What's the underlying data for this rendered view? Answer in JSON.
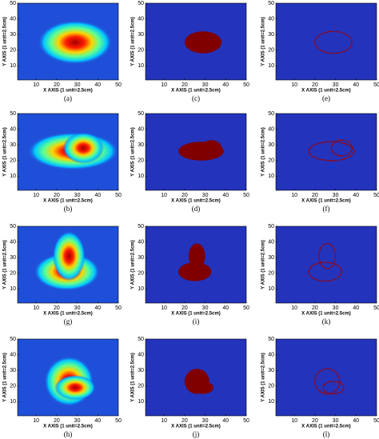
{
  "chart_data": [
    {
      "type": "heatmap",
      "caption": "(a)",
      "xlabel": "X AXIS (1 unit=2.5cm)",
      "ylabel": "Y AXIS (1 unit=2.5cm)",
      "xlim": [
        1,
        50
      ],
      "ylim": [
        1,
        50
      ],
      "xticks": [
        10,
        20,
        30,
        40,
        50
      ],
      "yticks": [
        10,
        20,
        30,
        40,
        50
      ]
    },
    {
      "type": "mask",
      "caption": "(c)",
      "xlabel": "X AXIS (1 unit=2.5cm)",
      "ylabel": "Y AXIS (1 unit=2.5cm)",
      "xlim": [
        1,
        50
      ],
      "ylim": [
        1,
        50
      ],
      "xticks": [
        10,
        20,
        30,
        40,
        50
      ],
      "yticks": [
        10,
        20,
        30,
        40,
        50
      ]
    },
    {
      "type": "contour",
      "caption": "(e)",
      "xlabel": "X AXIS (1 unit=2.5cm)",
      "ylabel": "Y AXIS (1 unit=2.5cm)",
      "xlim": [
        1,
        50
      ],
      "ylim": [
        1,
        50
      ],
      "xticks": [
        10,
        20,
        30,
        40,
        50
      ],
      "yticks": [
        10,
        20,
        30,
        40,
        50
      ]
    },
    {
      "type": "heatmap",
      "caption": "(b)",
      "xlabel": "X AXIS (1 unit=2.5cm)",
      "ylabel": "Y AXIS (1 unit=2.5cm)",
      "xlim": [
        1,
        50
      ],
      "ylim": [
        1,
        50
      ],
      "xticks": [
        10,
        20,
        30,
        40,
        50
      ],
      "yticks": [
        10,
        20,
        30,
        40,
        50
      ]
    },
    {
      "type": "mask",
      "caption": "(d)",
      "xlabel": "X AXIS (1 unit=2.5cm)",
      "ylabel": "Y AXIS (1 unit=2.5cm)",
      "xlim": [
        1,
        50
      ],
      "ylim": [
        1,
        50
      ],
      "xticks": [
        10,
        20,
        30,
        40,
        50
      ],
      "yticks": [
        10,
        20,
        30,
        40,
        50
      ]
    },
    {
      "type": "contour",
      "caption": "(f)",
      "xlabel": "X AXIS (1 unit=2.5cm)",
      "ylabel": "Y AXIS (1 unit=2.5cm)",
      "xlim": [
        1,
        50
      ],
      "ylim": [
        1,
        50
      ],
      "xticks": [
        10,
        20,
        30,
        40,
        50
      ],
      "yticks": [
        10,
        20,
        30,
        40,
        50
      ]
    },
    {
      "type": "heatmap",
      "caption": "(g)",
      "xlabel": "X AXIS (1 unit=2.5cm)",
      "ylabel": "Y AXIS (1 unit=2.5cm)",
      "xlim": [
        1,
        50
      ],
      "ylim": [
        1,
        50
      ],
      "xticks": [
        10,
        20,
        30,
        40,
        50
      ],
      "yticks": [
        10,
        20,
        30,
        40,
        50
      ]
    },
    {
      "type": "mask",
      "caption": "(i)",
      "xlabel": "X AXIS (1 unit=2.5cm)",
      "ylabel": "Y AXIS (1 unit=2.5cm)",
      "xlim": [
        1,
        50
      ],
      "ylim": [
        1,
        50
      ],
      "xticks": [
        10,
        20,
        30,
        40,
        50
      ],
      "yticks": [
        10,
        20,
        30,
        40,
        50
      ]
    },
    {
      "type": "contour",
      "caption": "(k)",
      "xlabel": "X AXIS (1 unit=2.5cm)",
      "ylabel": "Y AXIS (1 unit=2.5cm)",
      "xlim": [
        1,
        50
      ],
      "ylim": [
        1,
        50
      ],
      "xticks": [
        10,
        20,
        30,
        40,
        50
      ],
      "yticks": [
        10,
        20,
        30,
        40,
        50
      ]
    },
    {
      "type": "heatmap",
      "caption": "(h)",
      "xlabel": "X AXIS (1 unit=2.5cm)",
      "ylabel": "Y AXIS (1 unit=2.5cm)",
      "xlim": [
        1,
        50
      ],
      "ylim": [
        1,
        50
      ],
      "xticks": [
        10,
        20,
        30,
        40,
        50
      ],
      "yticks": [
        10,
        20,
        30,
        40,
        50
      ]
    },
    {
      "type": "mask",
      "caption": "(j)",
      "xlabel": "X AXIS (1 unit=2.5cm)",
      "ylabel": "Y AXIS (1 unit=2.5cm)",
      "xlim": [
        1,
        50
      ],
      "ylim": [
        1,
        50
      ],
      "xticks": [
        10,
        20,
        30,
        40,
        50
      ],
      "yticks": [
        10,
        20,
        30,
        40,
        50
      ]
    },
    {
      "type": "contour",
      "caption": "(l)",
      "xlabel": "X AXIS (1 unit=2.5cm)",
      "ylabel": "Y AXIS (1 unit=2.5cm)",
      "xlim": [
        1,
        50
      ],
      "ylim": [
        1,
        50
      ],
      "xticks": [
        10,
        20,
        30,
        40,
        50
      ],
      "yticks": [
        10,
        20,
        30,
        40,
        50
      ]
    }
  ]
}
